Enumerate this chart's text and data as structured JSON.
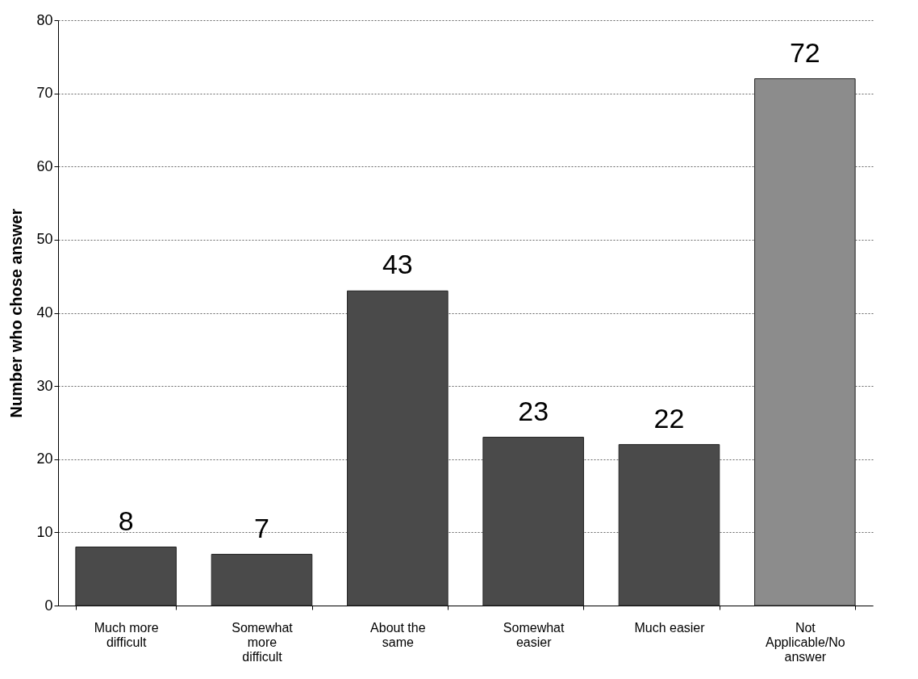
{
  "chart_data": {
    "type": "bar",
    "ylabel": "Number who chose answer",
    "categories": [
      "Much more difficult",
      "Somewhat more difficult",
      "About the same",
      "Somewhat easier",
      "Much easier",
      "Not Applicable/No answer"
    ],
    "values": [
      8,
      7,
      43,
      23,
      22,
      72
    ],
    "colors": [
      "#4a4a4a",
      "#4a4a4a",
      "#4a4a4a",
      "#4a4a4a",
      "#4a4a4a",
      "#8c8c8c"
    ],
    "ylim": [
      0,
      80
    ],
    "yticks": [
      0,
      10,
      20,
      30,
      40,
      50,
      60,
      70,
      80
    ],
    "grid": "y",
    "data_labels": true
  }
}
